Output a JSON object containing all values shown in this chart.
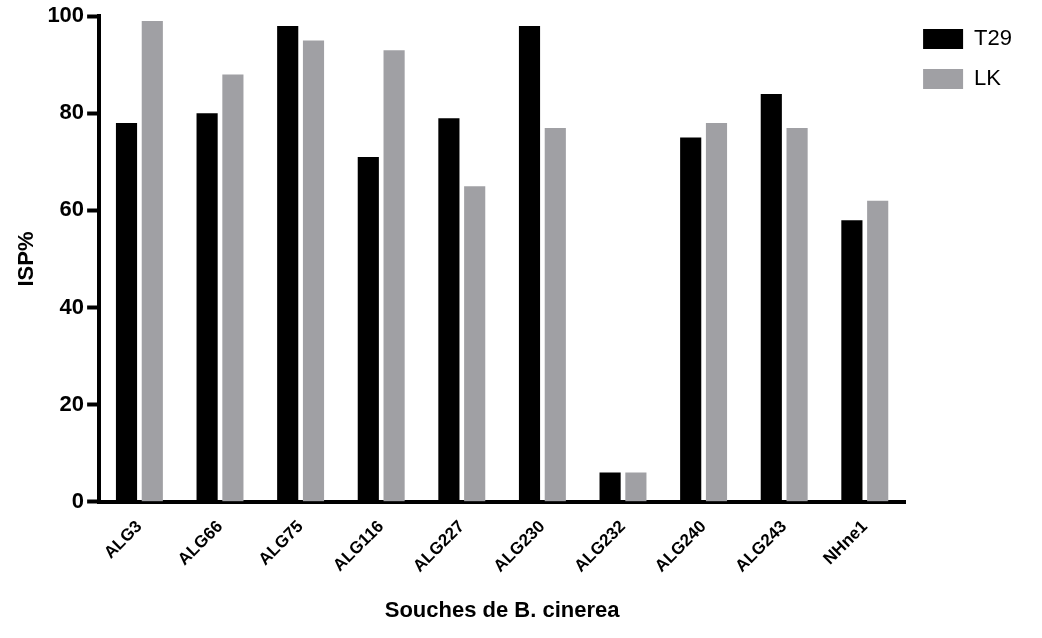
{
  "chart_data": {
    "type": "bar",
    "xlabel": "Souches de B. cinerea",
    "ylabel": "ISP%",
    "categories": [
      "ALG3",
      "ALG66",
      "ALG75",
      "ALG116",
      "ALG227",
      "ALG230",
      "ALG232",
      "ALG240",
      "ALG243",
      "NHne1"
    ],
    "series": [
      {
        "name": "T29",
        "color": "#000000",
        "values": [
          78,
          80,
          98,
          71,
          79,
          98,
          6,
          75,
          84,
          58
        ]
      },
      {
        "name": "LK",
        "color": "#a0a0a4",
        "values": [
          99,
          88,
          95,
          93,
          65,
          77,
          6,
          78,
          77,
          62
        ]
      }
    ],
    "ylim": [
      0,
      100
    ],
    "yticks": [
      0,
      20,
      40,
      60,
      80,
      100
    ],
    "grid": false,
    "legend": "top right"
  }
}
